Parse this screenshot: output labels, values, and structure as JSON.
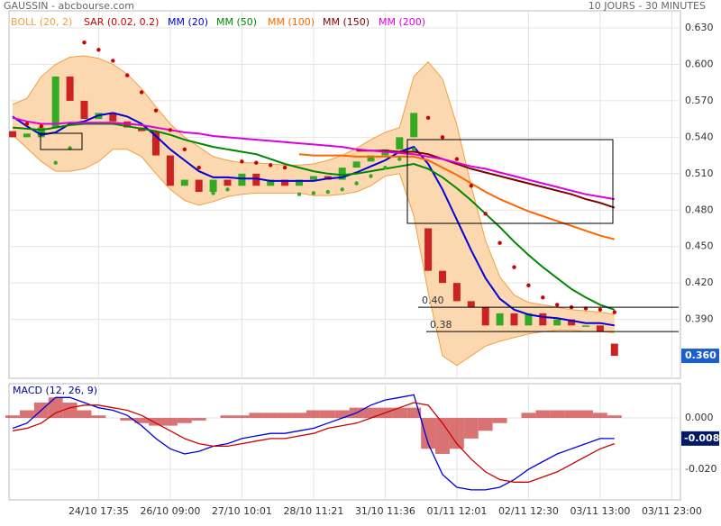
{
  "chart_data": [
    {
      "type": "candlestick",
      "title": "GAUSSIN - abcbourse.com",
      "subtitle": "10 JOURS - 30 MINUTES",
      "categories": [
        null,
        null,
        null,
        null,
        null,
        null,
        "24/10 17:35",
        null,
        null,
        null,
        null,
        "26/10 09:00",
        null,
        null,
        null,
        null,
        "27/10 10:01",
        null,
        null,
        null,
        null,
        "28/10 11:21",
        null,
        null,
        null,
        null,
        "31/10 11:36",
        null,
        null,
        null,
        null,
        "01/11 12:01",
        null,
        null,
        null,
        null,
        "02/11 12:30",
        null,
        null,
        null,
        null,
        "03/11 13:00",
        null,
        null,
        null,
        null,
        "03/11 23:00"
      ],
      "ylim": [
        0.3415,
        0.6441
      ],
      "yticks": [
        {
          "value": 0.63,
          "label": "0.630"
        },
        {
          "value": 0.6,
          "label": "0.600"
        },
        {
          "value": 0.57,
          "label": "0.570"
        },
        {
          "value": 0.54,
          "label": "0.540"
        },
        {
          "value": 0.51,
          "label": "0.510"
        },
        {
          "value": 0.48,
          "label": "0.480"
        },
        {
          "value": 0.45,
          "label": "0.450"
        },
        {
          "value": 0.42,
          "label": "0.420"
        },
        {
          "value": 0.39,
          "label": "0.390"
        }
      ],
      "grid": true,
      "last_price": {
        "value": 0.36,
        "label": "0.360",
        "color": "#1a5fd0"
      },
      "annotations": [
        {
          "value": 0.4,
          "label": "0.40"
        },
        {
          "value": 0.38,
          "label": "0.38"
        }
      ],
      "candles": {
        "up_color": "#33aa22",
        "down_color": "#cc2222",
        "open": [
          0.545,
          0.54,
          0.54,
          0.548,
          0.59,
          0.57,
          0.555,
          0.56,
          0.553,
          0.548,
          0.545,
          0.525,
          0.5,
          0.505,
          0.495,
          0.505,
          0.5,
          0.51,
          0.5,
          0.505,
          0.5,
          0.505,
          0.508,
          0.505,
          0.515,
          0.52,
          0.525,
          0.53,
          0.54,
          0.465,
          0.43,
          0.42,
          0.405,
          0.4,
          0.385,
          0.395,
          0.385,
          0.395,
          0.385,
          0.39,
          0.385,
          0.385,
          0.37,
          null,
          null,
          null,
          null
        ],
        "close": [
          0.54,
          0.543,
          0.548,
          0.59,
          0.57,
          0.555,
          0.56,
          0.553,
          0.548,
          0.545,
          0.525,
          0.5,
          0.505,
          0.495,
          0.505,
          0.5,
          0.51,
          0.5,
          0.505,
          0.5,
          0.505,
          0.508,
          0.505,
          0.515,
          0.52,
          0.525,
          0.53,
          0.54,
          0.56,
          0.43,
          0.42,
          0.405,
          0.4,
          0.385,
          0.395,
          0.385,
          0.395,
          0.385,
          0.39,
          0.385,
          0.385,
          0.38,
          0.36,
          null,
          null,
          null,
          null
        ]
      },
      "bollinger": {
        "name": "BOLL (20, 2)",
        "color": "#f0a040",
        "fill": "#fcd8b0",
        "upper": [
          0.567,
          0.572,
          0.59,
          0.6,
          0.606,
          0.607,
          0.605,
          0.6,
          0.592,
          0.58,
          0.565,
          0.551,
          0.54,
          0.532,
          0.524,
          0.521,
          0.519,
          0.519,
          0.518,
          0.517,
          0.517,
          0.518,
          0.521,
          0.525,
          0.531,
          0.538,
          0.544,
          0.548,
          0.59,
          0.602,
          0.588,
          0.55,
          0.5,
          0.455,
          0.425,
          0.41,
          0.404,
          0.402,
          0.4,
          0.398,
          0.397,
          0.396,
          0.394,
          null,
          null,
          null,
          null
        ],
        "lower": [
          0.542,
          0.531,
          0.52,
          0.512,
          0.512,
          0.514,
          0.52,
          0.53,
          0.53,
          0.524,
          0.51,
          0.497,
          0.488,
          0.484,
          0.487,
          0.491,
          0.493,
          0.494,
          0.494,
          0.494,
          0.494,
          0.492,
          0.492,
          0.493,
          0.495,
          0.5,
          0.508,
          0.51,
          0.475,
          0.412,
          0.36,
          0.352,
          0.36,
          0.368,
          0.372,
          0.375,
          0.378,
          0.38,
          0.381,
          0.381,
          0.38,
          0.38,
          0.379,
          null,
          null,
          null,
          null
        ]
      },
      "sar": {
        "name": "SAR (0.02, 0.2)",
        "color": "#cc0000",
        "color_above": "#cc0000",
        "color_below": "#33aa22",
        "values": [
          null,
          0.551,
          0.549,
          0.519,
          0.531,
          0.618,
          0.612,
          0.603,
          0.591,
          0.577,
          0.562,
          0.546,
          0.53,
          0.515,
          0.494,
          0.497,
          0.52,
          0.519,
          0.517,
          0.515,
          0.493,
          0.494,
          0.495,
          0.497,
          0.502,
          0.508,
          0.515,
          0.522,
          0.53,
          0.556,
          0.54,
          0.522,
          0.5,
          0.477,
          0.453,
          0.433,
          0.418,
          0.408,
          0.402,
          0.4,
          0.399,
          0.398,
          0.396,
          null,
          null,
          null,
          null
        ]
      },
      "moving_averages": [
        {
          "name": "MM (20)",
          "color": "#0000dd",
          "values": [
            0.557,
            0.549,
            0.542,
            0.544,
            0.551,
            0.553,
            0.558,
            0.56,
            0.557,
            0.551,
            0.541,
            0.53,
            0.521,
            0.512,
            0.507,
            0.507,
            0.506,
            0.506,
            0.504,
            0.504,
            0.504,
            0.504,
            0.506,
            0.507,
            0.511,
            0.516,
            0.521,
            0.528,
            0.532,
            0.518,
            0.497,
            0.472,
            0.447,
            0.424,
            0.407,
            0.398,
            0.394,
            0.392,
            0.391,
            0.389,
            0.387,
            0.387,
            0.385,
            null,
            null,
            null,
            null
          ]
        },
        {
          "name": "MM (50)",
          "color": "#008800",
          "values": [
            0.548,
            0.547,
            0.546,
            0.548,
            0.55,
            0.551,
            0.551,
            0.551,
            0.549,
            0.547,
            0.545,
            0.542,
            0.538,
            0.535,
            0.532,
            0.53,
            0.528,
            0.526,
            0.522,
            0.518,
            0.515,
            0.512,
            0.51,
            0.509,
            0.51,
            0.512,
            0.514,
            0.516,
            0.518,
            0.514,
            0.507,
            0.498,
            0.488,
            0.477,
            0.466,
            0.454,
            0.443,
            0.433,
            0.424,
            0.415,
            0.408,
            0.402,
            0.398,
            null,
            null,
            null,
            null
          ]
        },
        {
          "name": "MM (100)",
          "color": "#ff6600",
          "values": [
            null,
            null,
            null,
            null,
            null,
            null,
            null,
            null,
            null,
            null,
            null,
            null,
            null,
            null,
            null,
            null,
            null,
            null,
            null,
            null,
            0.526,
            0.525,
            0.525,
            0.525,
            0.524,
            0.524,
            0.524,
            0.524,
            0.524,
            0.521,
            0.515,
            0.509,
            0.502,
            0.495,
            0.489,
            0.484,
            0.479,
            0.475,
            0.471,
            0.467,
            0.463,
            0.459,
            0.456,
            null,
            null,
            null,
            null
          ]
        },
        {
          "name": "MM (150)",
          "color": "#800000",
          "values": [
            null,
            null,
            null,
            null,
            null,
            null,
            null,
            null,
            null,
            null,
            null,
            null,
            null,
            null,
            null,
            null,
            null,
            null,
            null,
            null,
            null,
            null,
            null,
            null,
            0.529,
            0.529,
            0.529,
            0.528,
            0.528,
            0.526,
            0.522,
            0.518,
            0.514,
            0.511,
            0.508,
            0.505,
            0.502,
            0.499,
            0.496,
            0.493,
            0.489,
            0.486,
            0.482,
            null,
            null,
            null,
            null
          ]
        },
        {
          "name": "MM (200)",
          "color": "#dd00dd",
          "values": [
            0.556,
            0.553,
            0.551,
            0.551,
            0.552,
            0.552,
            0.552,
            0.552,
            0.551,
            0.55,
            0.548,
            0.546,
            0.544,
            0.543,
            0.541,
            0.54,
            0.539,
            0.538,
            0.537,
            0.536,
            0.535,
            0.534,
            0.533,
            0.532,
            0.53,
            0.529,
            0.528,
            0.527,
            0.526,
            0.524,
            0.522,
            0.519,
            0.516,
            0.514,
            0.511,
            0.508,
            0.505,
            0.502,
            0.499,
            0.496,
            0.493,
            0.491,
            0.489,
            null,
            null,
            null,
            null
          ]
        }
      ]
    },
    {
      "type": "macd",
      "title": "MACD (12, 26, 9)",
      "ylim": [
        -0.0319,
        0.01335
      ],
      "yticks": [
        {
          "value": 0,
          "label": "0.000"
        },
        {
          "value": -0.02,
          "label": "-0.020"
        }
      ],
      "last_value": {
        "value": -0.008,
        "label": "-0.008",
        "color": "#001a66"
      },
      "histogram": {
        "color": "#cc4444",
        "values": [
          0.001,
          0.003,
          0.006,
          0.008,
          0.006,
          0.003,
          0.001,
          0,
          -0.001,
          -0.002,
          -0.003,
          -0.003,
          -0.002,
          -0.001,
          0,
          0.001,
          0.001,
          0.002,
          0.002,
          0.002,
          0.002,
          0.003,
          0.003,
          0.003,
          0.004,
          0.004,
          0.004,
          0.004,
          0.004,
          -0.012,
          -0.014,
          -0.012,
          -0.008,
          -0.005,
          -0.002,
          0,
          0.002,
          0.003,
          0.003,
          0.003,
          0.003,
          0.002,
          0.001,
          null,
          null,
          null,
          null
        ]
      },
      "series": [
        {
          "color": "#0000dd",
          "values": [
            -0.004,
            -0.002,
            0.003,
            0.008,
            0.008,
            0.006,
            0.004,
            0.003,
            0.001,
            -0.003,
            -0.008,
            -0.012,
            -0.014,
            -0.013,
            -0.011,
            -0.01,
            -0.008,
            -0.007,
            -0.006,
            -0.006,
            -0.005,
            -0.004,
            -0.002,
            0,
            0.002,
            0.005,
            0.007,
            0.008,
            0.009,
            -0.01,
            -0.022,
            -0.027,
            -0.028,
            -0.028,
            -0.027,
            -0.024,
            -0.02,
            -0.017,
            -0.014,
            -0.012,
            -0.01,
            -0.008,
            -0.008,
            null,
            null,
            null,
            null
          ]
        },
        {
          "color": "#cc0000",
          "values": [
            -0.005,
            -0.004,
            -0.002,
            0.002,
            0.004,
            0.005,
            0.005,
            0.004,
            0.003,
            0.001,
            -0.002,
            -0.005,
            -0.008,
            -0.01,
            -0.011,
            -0.011,
            -0.01,
            -0.009,
            -0.008,
            -0.008,
            -0.007,
            -0.006,
            -0.004,
            -0.003,
            -0.002,
            0,
            0.002,
            0.004,
            0.006,
            0.005,
            -0.002,
            -0.01,
            -0.016,
            -0.021,
            -0.024,
            -0.025,
            -0.025,
            -0.023,
            -0.021,
            -0.018,
            -0.015,
            -0.012,
            -0.01,
            null,
            null,
            null,
            null
          ]
        }
      ]
    }
  ]
}
